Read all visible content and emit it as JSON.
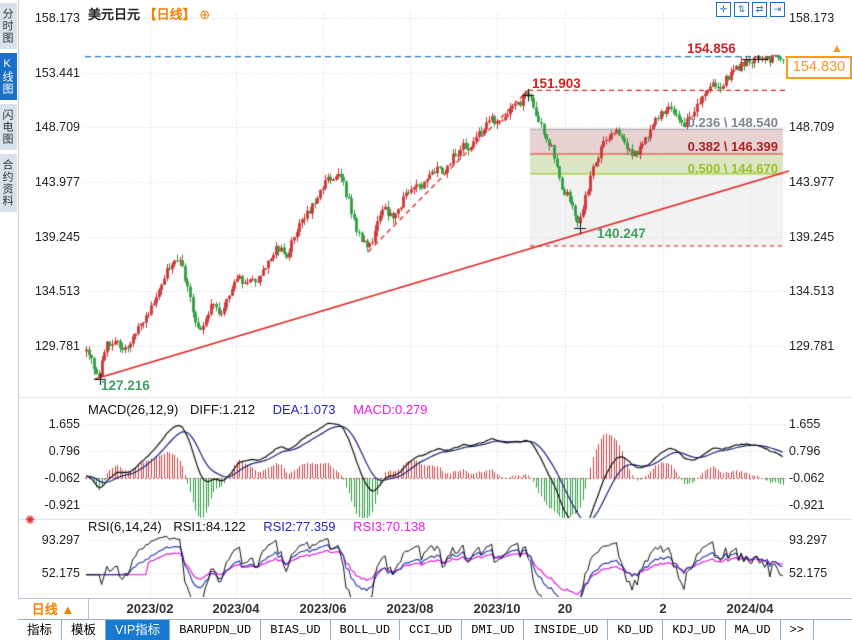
{
  "title": {
    "symbol": "美元日元",
    "period_tag": "【日线】",
    "add_icon": "⊕"
  },
  "sidebar": {
    "tabs": [
      {
        "label": "分时图",
        "active": false
      },
      {
        "label": "K线图",
        "active": true
      },
      {
        "label": "闪电图",
        "active": false
      },
      {
        "label": "合约资料",
        "active": false
      }
    ]
  },
  "top_icons": [
    {
      "name": "pan-crosshair-icon",
      "glyph": "✛"
    },
    {
      "name": "zoom-vertical-axis-icon",
      "glyph": "⇅"
    },
    {
      "name": "zoom-horizontal-axis-icon",
      "glyph": "⇄"
    },
    {
      "name": "shift-right-icon",
      "glyph": "⇥"
    }
  ],
  "price_box": {
    "value": "154.830",
    "arrow": "▲"
  },
  "main_axis": {
    "labels": [
      "158.173",
      "153.441",
      "148.709",
      "143.977",
      "139.245",
      "134.513",
      "129.781"
    ]
  },
  "macd_panel": {
    "header": {
      "name": "MACD(26,12,9)",
      "diff": "DIFF:1.212",
      "dea": "DEA:1.073",
      "macd": "MACD:0.279"
    },
    "axis": [
      "1.655",
      "0.796",
      "-0.062",
      "-0.921"
    ]
  },
  "rsi_panel": {
    "header": {
      "name": "RSI(6,14,24)",
      "rsi1": "RSI1:84.122",
      "rsi2": "RSI2:77.359",
      "rsi3": "RSI3:70.138"
    },
    "axis": [
      "93.297",
      "52.175"
    ],
    "settings_icon": "✺"
  },
  "annotations": {
    "recent_high": {
      "text": "154.856",
      "color": "#d22020"
    },
    "trend_high": {
      "text": "151.903",
      "color": "#d22020"
    },
    "pullback_low": {
      "text": "140.247",
      "color": "#3fa060"
    },
    "start_low": {
      "text": "127.216",
      "color": "#3fa060"
    }
  },
  "fib": {
    "levels": [
      {
        "label": "0.236 \\ 148.540",
        "color": "#80868f",
        "price": 148.54
      },
      {
        "label": "0.382 \\ 146.399",
        "color": "#b02020",
        "price": 146.399
      },
      {
        "label": "0.500 \\ 144.670",
        "color": "#9bbf2e",
        "price": 144.67
      }
    ]
  },
  "period_bar": {
    "label": "日线 ▲"
  },
  "dates": [
    "2023/02",
    "2023/04",
    "2023/06",
    "2023/08",
    "2023/10",
    "20",
    "2",
    "2024/04"
  ],
  "toolbar": {
    "items": [
      {
        "label": "指标",
        "active": false
      },
      {
        "label": "模板",
        "active": false
      },
      {
        "label": "VIP指标",
        "active": true
      },
      {
        "label": "BARUPDN_UD",
        "active": false
      },
      {
        "label": "BIAS_UD",
        "active": false
      },
      {
        "label": "BOLL_UD",
        "active": false
      },
      {
        "label": "CCI_UD",
        "active": false
      },
      {
        "label": "DMI_UD",
        "active": false
      },
      {
        "label": "INSIDE_UD",
        "active": false
      },
      {
        "label": "KD_UD",
        "active": false
      },
      {
        "label": "KDJ_UD",
        "active": false
      },
      {
        "label": "MA_UD",
        "active": false
      },
      {
        "label": ">>",
        "active": false
      }
    ]
  },
  "chart_data": {
    "type": "candlestick",
    "symbol": "USD/JPY 美元日元",
    "period": "daily",
    "y_axis_prices": [
      158.173,
      153.441,
      148.709,
      143.977,
      139.245,
      134.513,
      129.781
    ],
    "x_tick_labels": [
      "2023/02",
      "2023/04",
      "2023/06",
      "2023/08",
      "2023/10",
      "20",
      "2",
      "2024/04"
    ],
    "current_price": 154.83,
    "key_points": {
      "start_low": 127.216,
      "trend_high": 151.903,
      "pullback_low": 140.247,
      "recent_high": 154.856
    },
    "fib_retracement": [
      {
        "ratio": 0.236,
        "price": 148.54
      },
      {
        "ratio": 0.382,
        "price": 146.399
      },
      {
        "ratio": 0.5,
        "price": 144.67
      }
    ],
    "up_color": "#cf3434",
    "down_color": "#2f9e41",
    "price_path": [
      [
        86,
        129.4
      ],
      [
        90,
        128.6
      ],
      [
        95,
        127.8
      ],
      [
        99,
        127.4
      ],
      [
        103,
        128.8
      ],
      [
        108,
        130.2
      ],
      [
        113,
        129.6
      ],
      [
        117,
        130.4
      ],
      [
        121,
        129.4
      ],
      [
        125,
        129.9
      ],
      [
        129,
        129.6
      ],
      [
        133,
        130.6
      ],
      [
        138,
        131.5
      ],
      [
        143,
        132.0
      ],
      [
        148,
        132.6
      ],
      [
        153,
        133.6
      ],
      [
        158,
        134.5
      ],
      [
        163,
        135.6
      ],
      [
        168,
        136.5
      ],
      [
        173,
        137.2
      ],
      [
        178,
        137.5
      ],
      [
        182,
        136.6
      ],
      [
        186,
        135.2
      ],
      [
        190,
        133.8
      ],
      [
        194,
        132.2
      ],
      [
        198,
        131.0
      ],
      [
        202,
        131.6
      ],
      [
        206,
        132.4
      ],
      [
        210,
        133.0
      ],
      [
        215,
        133.4
      ],
      [
        220,
        132.6
      ],
      [
        225,
        133.2
      ],
      [
        230,
        134.2
      ],
      [
        235,
        135.2
      ],
      [
        240,
        135.6
      ],
      [
        245,
        135.0
      ],
      [
        250,
        135.8
      ],
      [
        255,
        135.2
      ],
      [
        260,
        136.0
      ],
      [
        265,
        136.8
      ],
      [
        270,
        137.4
      ],
      [
        275,
        138.0
      ],
      [
        280,
        138.3
      ],
      [
        284,
        137.5
      ],
      [
        288,
        137.9
      ],
      [
        293,
        139.0
      ],
      [
        298,
        139.9
      ],
      [
        303,
        140.6
      ],
      [
        308,
        141.3
      ],
      [
        313,
        142.2
      ],
      [
        318,
        143.0
      ],
      [
        323,
        143.7
      ],
      [
        328,
        144.2
      ],
      [
        333,
        144.5
      ],
      [
        337,
        144.8
      ],
      [
        341,
        144.3
      ],
      [
        345,
        143.3
      ],
      [
        350,
        141.8
      ],
      [
        355,
        140.3
      ],
      [
        360,
        139.2
      ],
      [
        365,
        138.5
      ],
      [
        369,
        138.3
      ],
      [
        373,
        139.3
      ],
      [
        377,
        140.4
      ],
      [
        381,
        141.2
      ],
      [
        385,
        141.6
      ],
      [
        389,
        141.0
      ],
      [
        393,
        140.7
      ],
      [
        397,
        141.4
      ],
      [
        401,
        142.2
      ],
      [
        405,
        142.9
      ],
      [
        410,
        143.5
      ],
      [
        415,
        143.9
      ],
      [
        419,
        143.4
      ],
      [
        423,
        143.8
      ],
      [
        428,
        144.4
      ],
      [
        433,
        144.9
      ],
      [
        438,
        145.3
      ],
      [
        443,
        144.9
      ],
      [
        448,
        145.5
      ],
      [
        453,
        146.1
      ],
      [
        458,
        146.5
      ],
      [
        463,
        147.1
      ],
      [
        468,
        146.8
      ],
      [
        473,
        147.4
      ],
      [
        478,
        148.0
      ],
      [
        483,
        148.6
      ],
      [
        488,
        149.1
      ],
      [
        493,
        149.5
      ],
      [
        497,
        149.2
      ],
      [
        501,
        149.6
      ],
      [
        506,
        150.0
      ],
      [
        511,
        150.3
      ],
      [
        516,
        150.6
      ],
      [
        521,
        151.0
      ],
      [
        525,
        151.4
      ],
      [
        528,
        151.6
      ],
      [
        531,
        151.0
      ],
      [
        534,
        150.2
      ],
      [
        538,
        149.3
      ],
      [
        542,
        148.5
      ],
      [
        546,
        147.7
      ],
      [
        550,
        147.2
      ],
      [
        554,
        146.2
      ],
      [
        558,
        144.8
      ],
      [
        561,
        143.5
      ],
      [
        564,
        142.6
      ],
      [
        567,
        143.2
      ],
      [
        570,
        142.4
      ],
      [
        573,
        141.5
      ],
      [
        576,
        140.8
      ],
      [
        579,
        140.6
      ],
      [
        582,
        141.6
      ],
      [
        585,
        142.6
      ],
      [
        588,
        143.4
      ],
      [
        591,
        144.4
      ],
      [
        594,
        145.3
      ],
      [
        597,
        146.1
      ],
      [
        600,
        146.8
      ],
      [
        604,
        147.4
      ],
      [
        608,
        148.0
      ],
      [
        612,
        148.4
      ],
      [
        616,
        148.6
      ],
      [
        620,
        148.2
      ],
      [
        624,
        147.5
      ],
      [
        628,
        146.8
      ],
      [
        632,
        146.3
      ],
      [
        636,
        146.5
      ],
      [
        640,
        147.0
      ],
      [
        644,
        147.6
      ],
      [
        648,
        148.2
      ],
      [
        652,
        148.8
      ],
      [
        656,
        149.4
      ],
      [
        660,
        149.9
      ],
      [
        664,
        150.3
      ],
      [
        668,
        150.6
      ],
      [
        672,
        150.3
      ],
      [
        676,
        149.8
      ],
      [
        680,
        149.3
      ],
      [
        684,
        149.0
      ],
      [
        688,
        149.3
      ],
      [
        692,
        149.8
      ],
      [
        696,
        150.3
      ],
      [
        700,
        150.8
      ],
      [
        704,
        151.3
      ],
      [
        708,
        151.8
      ],
      [
        712,
        152.2
      ],
      [
        716,
        152.5
      ],
      [
        720,
        152.3
      ],
      [
        724,
        152.7
      ],
      [
        728,
        153.1
      ],
      [
        732,
        153.5
      ],
      [
        736,
        153.8
      ],
      [
        740,
        154.0
      ],
      [
        744,
        154.2
      ],
      [
        748,
        154.35
      ],
      [
        752,
        154.5
      ],
      [
        756,
        154.6
      ],
      [
        760,
        154.45
      ],
      [
        764,
        154.55
      ],
      [
        768,
        154.6
      ],
      [
        772,
        154.65
      ],
      [
        776,
        154.7
      ],
      [
        780,
        154.75
      ],
      [
        784,
        154.83
      ]
    ],
    "macd": {
      "params": [
        26,
        12,
        9
      ],
      "diff": 1.212,
      "dea": 1.073,
      "macd": 0.279,
      "axis": [
        1.655,
        0.796,
        -0.062,
        -0.921
      ]
    },
    "rsi": {
      "params": [
        6,
        14,
        24
      ],
      "rsi1": 84.122,
      "rsi2": 77.359,
      "rsi3": 70.138,
      "axis": [
        93.297,
        52.175
      ]
    }
  }
}
